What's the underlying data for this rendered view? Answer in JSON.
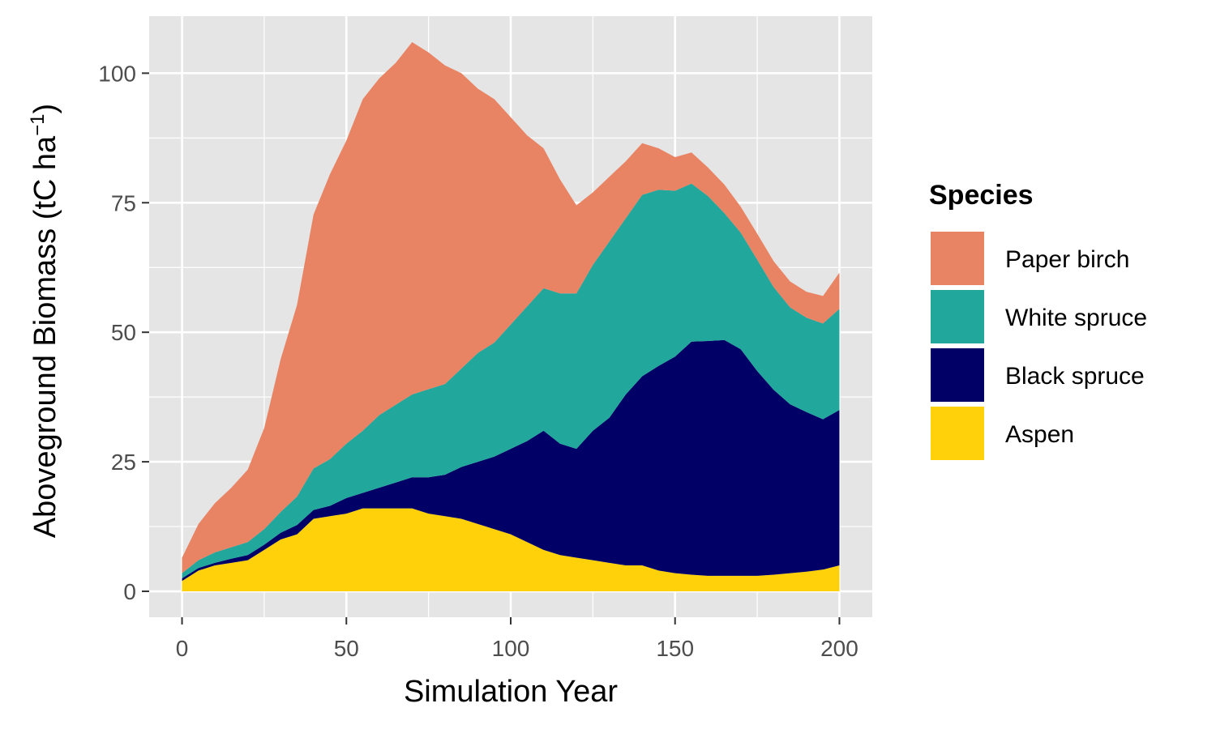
{
  "chart_data": {
    "type": "area",
    "stacked": true,
    "title": "",
    "xlabel": "Simulation Year",
    "ylabel_main": "Aboveground Biomass (tC ha",
    "ylabel_sup": "−1",
    "ylabel_close": ")",
    "xlim": [
      -10,
      210
    ],
    "ylim": [
      -5,
      111
    ],
    "xticks": [
      0,
      50,
      100,
      150,
      200
    ],
    "yticks": [
      0,
      25,
      50,
      75,
      100
    ],
    "xtick_labels": [
      "0",
      "50",
      "100",
      "150",
      "200"
    ],
    "ytick_labels": [
      "0",
      "25",
      "50",
      "75",
      "100"
    ],
    "grid": true,
    "legend": {
      "title": "Species",
      "position": "right",
      "entries": [
        "Paper birch",
        "White spruce",
        "Black spruce",
        "Aspen"
      ]
    },
    "x": [
      0,
      5,
      10,
      15,
      20,
      25,
      30,
      35,
      40,
      45,
      50,
      55,
      60,
      65,
      70,
      75,
      80,
      85,
      90,
      95,
      100,
      105,
      110,
      115,
      120,
      125,
      130,
      135,
      140,
      145,
      150,
      155,
      160,
      165,
      170,
      175,
      180,
      185,
      190,
      195,
      200
    ],
    "series": [
      {
        "name": "Aspen",
        "color": "#FFD10A",
        "values": [
          2,
          4,
          5,
          5.5,
          6,
          8,
          10,
          11,
          14,
          14.5,
          15,
          16,
          16,
          16,
          16,
          15,
          14.5,
          14,
          13,
          12,
          11,
          9.5,
          8,
          7,
          6.5,
          6,
          5.5,
          5,
          5,
          4,
          3.5,
          3.2,
          3,
          3,
          3,
          3,
          3.2,
          3.5,
          3.8,
          4.2,
          5
        ]
      },
      {
        "name": "Black spruce",
        "color": "#000066",
        "values": [
          0.5,
          0.5,
          0.5,
          0.8,
          1,
          1,
          1.3,
          1.8,
          1.7,
          2,
          3,
          3,
          4,
          5,
          6,
          7,
          8,
          10,
          12,
          14,
          16.5,
          19.5,
          23,
          21.5,
          21,
          25,
          28,
          33,
          36.5,
          39.5,
          41.8,
          45,
          45.3,
          45.5,
          43.7,
          39.5,
          35.7,
          32.6,
          30.8,
          29,
          30
        ]
      },
      {
        "name": "White spruce",
        "color": "#21A79B",
        "values": [
          1,
          1.5,
          2,
          2.2,
          2.5,
          3,
          4,
          5.5,
          8,
          9,
          10.5,
          12,
          14,
          15,
          16,
          17,
          17.5,
          19,
          21,
          22,
          24,
          26,
          27.5,
          29,
          30,
          32,
          34,
          34,
          35,
          34,
          32,
          30.5,
          28,
          24.5,
          22.5,
          21.5,
          19.8,
          18.7,
          18.2,
          18.5,
          19.5
        ]
      },
      {
        "name": "Paper birch",
        "color": "#E88363",
        "values": [
          3,
          7,
          9.5,
          11.5,
          14,
          19.5,
          29.5,
          37,
          49,
          55,
          58.5,
          64,
          65,
          66,
          68,
          65,
          61.5,
          57,
          51,
          47,
          40,
          33,
          27,
          22,
          17,
          14,
          12.5,
          11,
          10,
          8,
          6.5,
          6,
          5.5,
          5.5,
          5,
          5,
          5,
          5,
          5,
          5.3,
          7
        ]
      }
    ]
  }
}
